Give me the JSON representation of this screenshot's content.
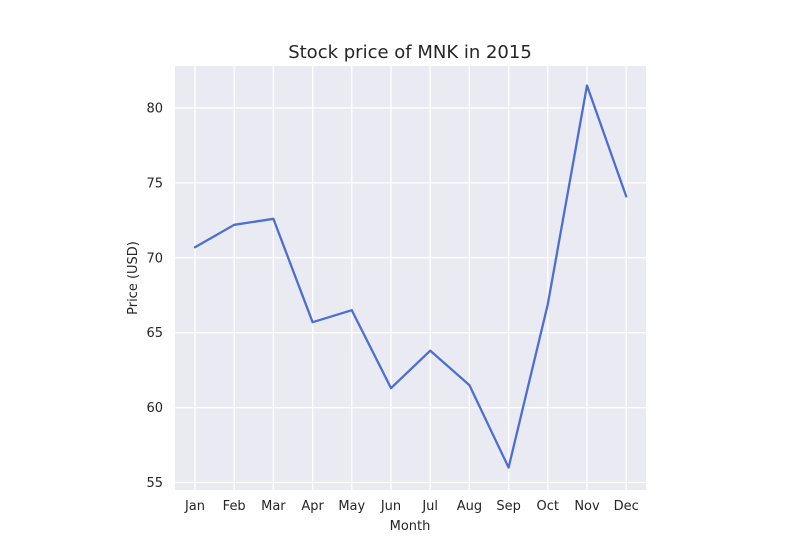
{
  "chart_data": {
    "type": "line",
    "title": "Stock price of MNK in 2015",
    "xlabel": "Month",
    "ylabel": "Price (USD)",
    "categories": [
      "Jan",
      "Feb",
      "Mar",
      "Apr",
      "May",
      "Jun",
      "Jul",
      "Aug",
      "Sep",
      "Oct",
      "Nov",
      "Dec"
    ],
    "series": [
      {
        "values": [
          70.7,
          72.2,
          72.6,
          65.7,
          66.5,
          61.3,
          63.8,
          61.5,
          56.0,
          66.9,
          81.5,
          74.1
        ]
      }
    ],
    "ylim": [
      54.5,
      82.8
    ],
    "yticks": [
      55,
      60,
      65,
      70,
      75,
      80
    ],
    "grid": true,
    "line_color": "#4c6fd1",
    "background_color": "#eaeaf2",
    "grid_color": "#ffffff"
  }
}
